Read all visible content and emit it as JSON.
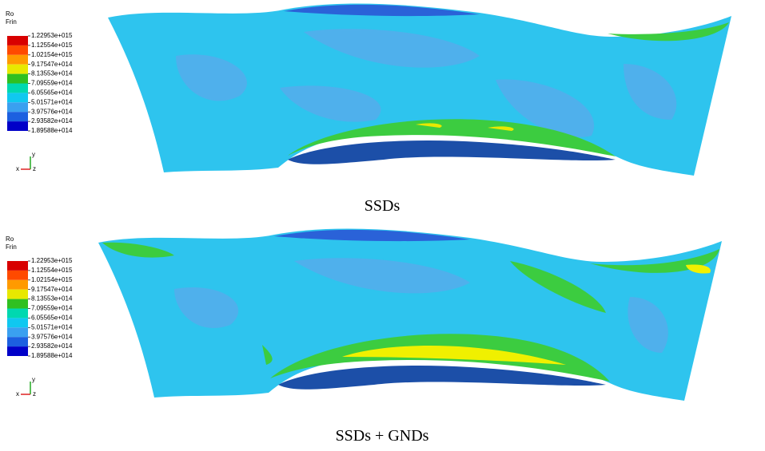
{
  "panels": [
    {
      "legend_title": [
        "Ro",
        "Frin"
      ],
      "legend_labels": [
        "1.22953e+015",
        "1.12554e+015",
        "1.02154e+015",
        "9.17547e+014",
        "8.13553e+014",
        "7.09559e+014",
        "6.05565e+014",
        "5.01571e+014",
        "3.97576e+014",
        "2.93582e+014",
        "1.89588e+014"
      ],
      "legend_colors": [
        "#d80000",
        "#ff4a00",
        "#ff9a00",
        "#e8e800",
        "#30c020",
        "#00d8b0",
        "#10c8f0",
        "#3aa0f0",
        "#1c60e0",
        "#0000c8"
      ],
      "axes": [
        "y",
        "x",
        "z"
      ],
      "caption": "SSDs"
    },
    {
      "legend_title": [
        "Ro",
        "Frin"
      ],
      "legend_labels": [
        "1.22953e+015",
        "1.12554e+015",
        "1.02154e+015",
        "9.17547e+014",
        "8.13553e+014",
        "7.09559e+014",
        "6.05565e+014",
        "5.01571e+014",
        "3.97576e+014",
        "2.93582e+014",
        "1.89588e+014"
      ],
      "legend_colors": [
        "#d80000",
        "#ff4a00",
        "#ff9a00",
        "#e8e800",
        "#30c020",
        "#00d8b0",
        "#10c8f0",
        "#3aa0f0",
        "#1c60e0",
        "#0000c8"
      ],
      "axes": [
        "y",
        "x",
        "z"
      ],
      "caption": "SSDs + GNDs"
    }
  ]
}
